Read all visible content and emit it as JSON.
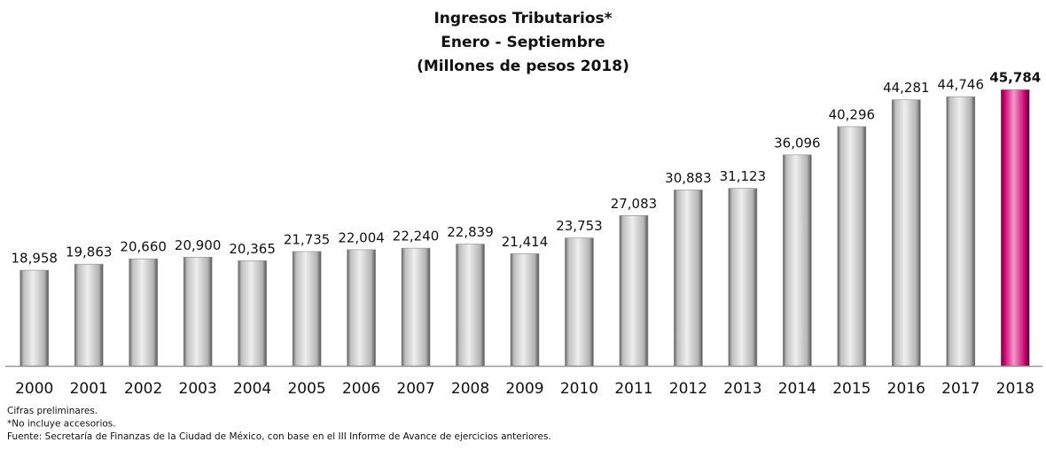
{
  "chart_data": {
    "type": "bar",
    "title": "Ingresos Tributarios*",
    "subtitle": [
      "Enero - Septiembre",
      "(Millones de pesos 2018)"
    ],
    "categories": [
      "2000",
      "2001",
      "2002",
      "2003",
      "2004",
      "2005",
      "2006",
      "2007",
      "2008",
      "2009",
      "2010",
      "2011",
      "2012",
      "2013",
      "2014",
      "2015",
      "2016",
      "2017",
      "2018"
    ],
    "values": [
      18958,
      19863,
      20660,
      20900,
      20365,
      21735,
      22004,
      22240,
      22839,
      21414,
      23753,
      27083,
      30883,
      31123,
      36096,
      40296,
      44281,
      44746,
      45784
    ],
    "value_labels": [
      "18,958",
      "19,863",
      "20,660",
      "20,900",
      "20,365",
      "21,735",
      "22,004",
      "22,240",
      "22,839",
      "21,414",
      "23,753",
      "27,083",
      "30,883",
      "31,123",
      "36,096",
      "40,296",
      "44,281",
      "44,746",
      "45,784"
    ],
    "colors": [
      "#d4d4d4",
      "#d4d4d4",
      "#d4d4d4",
      "#d4d4d4",
      "#d4d4d4",
      "#d4d4d4",
      "#d4d4d4",
      "#d4d4d4",
      "#d4d4d4",
      "#d4d4d4",
      "#d4d4d4",
      "#d4d4d4",
      "#d4d4d4",
      "#d4d4d4",
      "#d4d4d4",
      "#d4d4d4",
      "#d4d4d4",
      "#d4d4d4",
      "#e6007e"
    ],
    "ylim": [
      4750,
      47000
    ],
    "notes": [
      "Cifras preliminares.",
      "*No incluye accesorios.",
      "Fuente: Secretaría de Finanzas de la Ciudad de México, con base en el III Informe de Avance de ejercicios anteriores."
    ]
  }
}
